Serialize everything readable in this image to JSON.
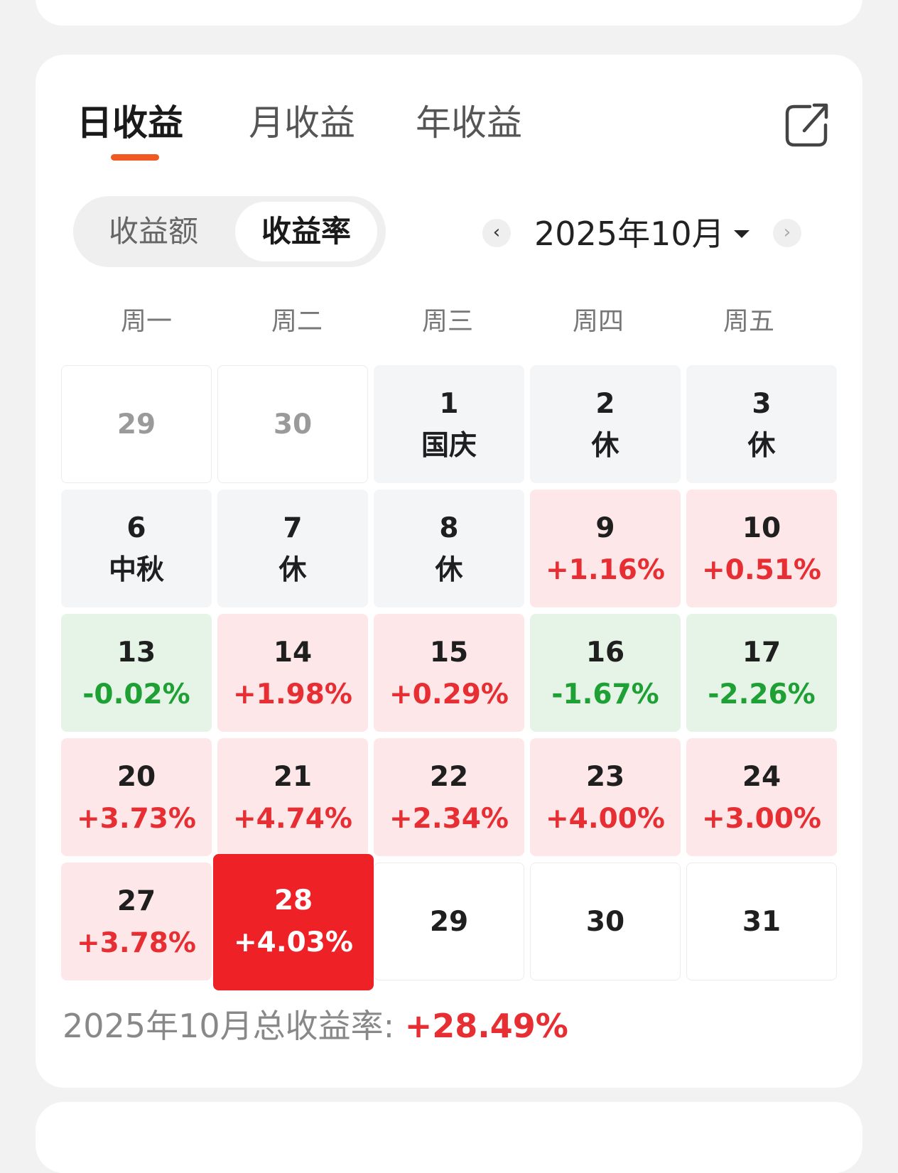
{
  "tabs": [
    {
      "label": "日收益",
      "active": true
    },
    {
      "label": "月收益",
      "active": false
    },
    {
      "label": "年收益",
      "active": false
    }
  ],
  "toggle": {
    "options": [
      "收益额",
      "收益率"
    ],
    "selected": "收益率"
  },
  "month_nav": {
    "prev": "‹",
    "label": "2025年10月",
    "next": "›"
  },
  "weekdays": [
    "周一",
    "周二",
    "周三",
    "周四",
    "周五"
  ],
  "calendar": {
    "rows": [
      [
        {
          "day": "29",
          "value": "",
          "type": "blank-past"
        },
        {
          "day": "30",
          "value": "",
          "type": "blank-past"
        },
        {
          "day": "1",
          "value": "国庆",
          "type": "holiday"
        },
        {
          "day": "2",
          "value": "休",
          "type": "holiday"
        },
        {
          "day": "3",
          "value": "休",
          "type": "holiday"
        }
      ],
      [
        {
          "day": "6",
          "value": "中秋",
          "type": "holiday"
        },
        {
          "day": "7",
          "value": "休",
          "type": "holiday"
        },
        {
          "day": "8",
          "value": "休",
          "type": "holiday"
        },
        {
          "day": "9",
          "value": "+1.16%",
          "type": "up"
        },
        {
          "day": "10",
          "value": "+0.51%",
          "type": "up"
        }
      ],
      [
        {
          "day": "13",
          "value": "-0.02%",
          "type": "down"
        },
        {
          "day": "14",
          "value": "+1.98%",
          "type": "up"
        },
        {
          "day": "15",
          "value": "+0.29%",
          "type": "up"
        },
        {
          "day": "16",
          "value": "-1.67%",
          "type": "down"
        },
        {
          "day": "17",
          "value": "-2.26%",
          "type": "down"
        }
      ],
      [
        {
          "day": "20",
          "value": "+3.73%",
          "type": "up"
        },
        {
          "day": "21",
          "value": "+4.74%",
          "type": "up"
        },
        {
          "day": "22",
          "value": "+2.34%",
          "type": "up"
        },
        {
          "day": "23",
          "value": "+4.00%",
          "type": "up"
        },
        {
          "day": "24",
          "value": "+3.00%",
          "type": "up"
        }
      ],
      [
        {
          "day": "27",
          "value": "+3.78%",
          "type": "up"
        },
        {
          "day": "28",
          "value": "+4.03%",
          "type": "today"
        },
        {
          "day": "29",
          "value": "",
          "type": "blank"
        },
        {
          "day": "30",
          "value": "",
          "type": "blank"
        },
        {
          "day": "31",
          "value": "",
          "type": "blank"
        }
      ]
    ]
  },
  "summary": {
    "label": "2025年10月总收益率: ",
    "value": "+28.49%"
  },
  "colors": {
    "up": "#e62e33",
    "down": "#1fa034",
    "today_bg": "#ee2126",
    "accent": "#f05a22"
  },
  "icons": {
    "share": "share-icon"
  }
}
